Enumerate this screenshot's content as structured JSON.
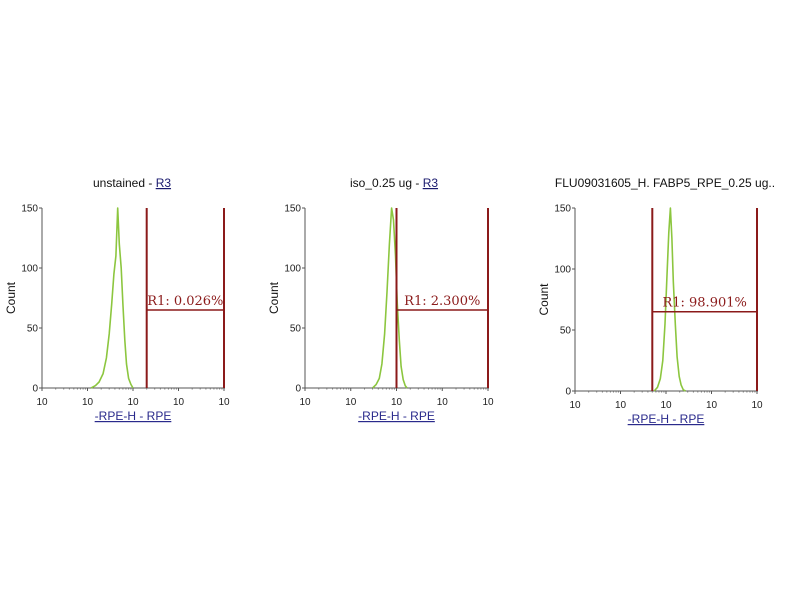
{
  "chart_data": [
    {
      "type": "histogram",
      "title": "unstained - ",
      "title_gate": "R3",
      "ylabel": "Count",
      "xlabel": "-RPE-H - RPE",
      "x_scale": "log",
      "xlim": [
        1,
        10000
      ],
      "ylim": [
        0,
        150
      ],
      "x_tick_labels": [
        "10",
        "10",
        "10",
        "10",
        "10"
      ],
      "y_ticks": [
        "0",
        "50",
        "100",
        "150"
      ],
      "color": "#8cc63f",
      "gate_color": "#8b1a1a",
      "gate": {
        "name": "R1",
        "percent": "0.026%",
        "x_range": [
          200,
          10000
        ],
        "level": 65
      },
      "histogram": {
        "x": [
          12,
          15,
          18,
          22,
          26,
          30,
          34,
          38,
          42,
          46,
          50,
          55,
          60,
          66,
          72,
          80,
          90,
          100
        ],
        "y": [
          0,
          2,
          5,
          12,
          25,
          45,
          70,
          95,
          110,
          150,
          120,
          100,
          70,
          40,
          20,
          8,
          3,
          0
        ]
      }
    },
    {
      "type": "histogram",
      "title": "iso_0.25 ug - ",
      "title_gate": "R3",
      "ylabel": "Count",
      "xlabel": "-RPE-H - RPE",
      "x_scale": "log",
      "xlim": [
        1,
        10000
      ],
      "ylim": [
        0,
        150
      ],
      "x_tick_labels": [
        "10",
        "10",
        "10",
        "10",
        "10"
      ],
      "y_ticks": [
        "0",
        "50",
        "100",
        "150"
      ],
      "color": "#8cc63f",
      "gate_color": "#8b1a1a",
      "gate": {
        "name": "R1",
        "percent": "2.300%",
        "x_range": [
          100,
          10000
        ],
        "level": 65
      },
      "histogram": {
        "x": [
          30,
          36,
          42,
          48,
          55,
          62,
          70,
          78,
          86,
          95,
          104,
          115,
          126,
          140,
          155,
          170
        ],
        "y": [
          0,
          3,
          8,
          20,
          45,
          80,
          120,
          150,
          140,
          110,
          70,
          40,
          18,
          7,
          2,
          0
        ]
      }
    },
    {
      "type": "histogram",
      "title": "FLU09031605_H. FABP5_RPE_0.25 ug..",
      "title_gate": "",
      "ylabel": "Count",
      "xlabel": "-RPE-H - RPE",
      "x_scale": "log",
      "xlim": [
        1,
        10000
      ],
      "ylim": [
        0,
        150
      ],
      "x_tick_labels": [
        "10",
        "10",
        "10",
        "10",
        "10"
      ],
      "y_ticks": [
        "0",
        "50",
        "100",
        "150"
      ],
      "color": "#8cc63f",
      "gate_color": "#8b1a1a",
      "gate": {
        "name": "R1",
        "percent": "98.901%",
        "x_range": [
          50,
          10000
        ],
        "level": 65
      },
      "histogram": {
        "x": [
          55,
          65,
          75,
          85,
          95,
          105,
          115,
          125,
          135,
          145,
          160,
          175,
          195,
          215,
          240,
          270
        ],
        "y": [
          0,
          3,
          10,
          25,
          55,
          95,
          130,
          150,
          125,
          90,
          55,
          28,
          12,
          5,
          1,
          0
        ]
      }
    }
  ]
}
